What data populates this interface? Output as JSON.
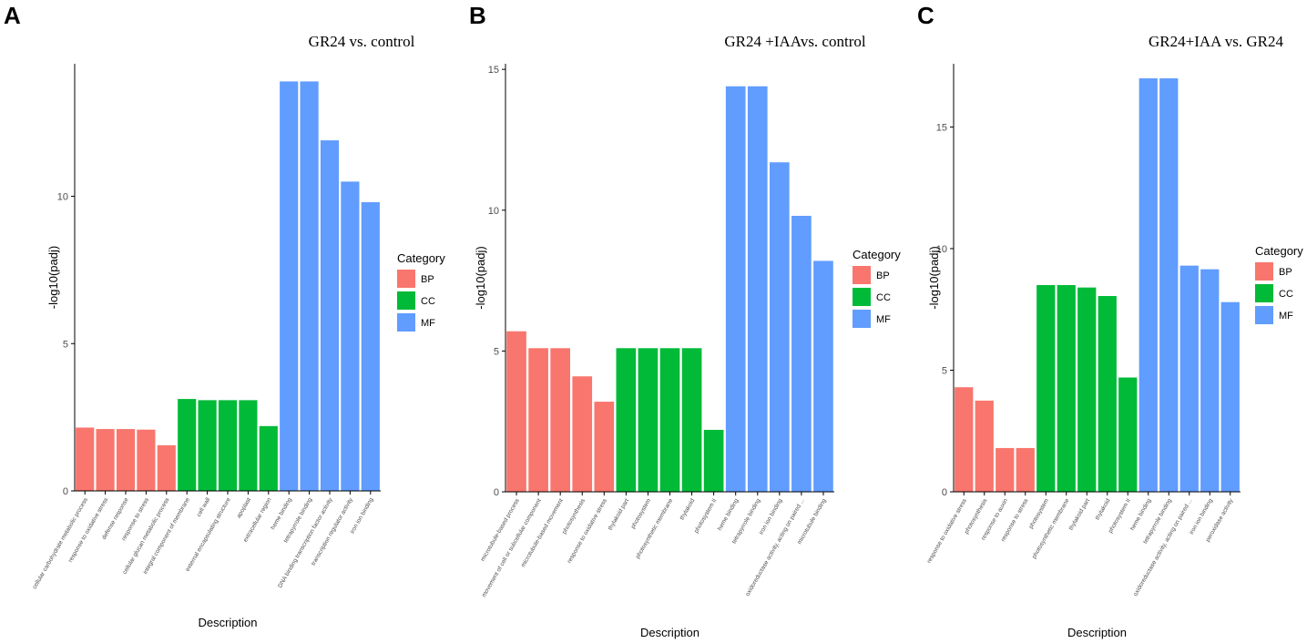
{
  "colors": {
    "BP": "#F8766D",
    "CC": "#00BA38",
    "MF": "#619CFF"
  },
  "chart_data": [
    {
      "type": "bar",
      "panel_label": "A",
      "title": "GR24 vs. control",
      "xlabel": "Description",
      "ylabel": "-log10(padj)",
      "ylim": [
        0,
        14.5
      ],
      "yticks": [
        0,
        5,
        10
      ],
      "legend": {
        "title": "Category",
        "entries": [
          "BP",
          "CC",
          "MF"
        ]
      },
      "categories": [
        "cellular carbohydrate metabolic process",
        "response to oxidative stress",
        "defense response",
        "response to stress",
        "cellular glucan metabolic process",
        "integral component of membrane",
        "cell wall",
        "external encapsulating structure",
        "apoplast",
        "extracellular region",
        "heme binding",
        "tetrapyrrole binding",
        "DNA binding transcription factor activity",
        "transcription regulator activity",
        "iron ion binding"
      ],
      "values": [
        2.15,
        2.1,
        2.1,
        2.08,
        1.55,
        3.12,
        3.08,
        3.08,
        3.08,
        2.2,
        13.9,
        13.9,
        11.9,
        10.5,
        9.8
      ],
      "category_groups": [
        "BP",
        "BP",
        "BP",
        "BP",
        "BP",
        "CC",
        "CC",
        "CC",
        "CC",
        "CC",
        "MF",
        "MF",
        "MF",
        "MF",
        "MF"
      ]
    },
    {
      "type": "bar",
      "panel_label": "B",
      "title": "GR24 +IAAvs. control",
      "xlabel": "Description",
      "ylabel": "-log10(padj)",
      "ylim": [
        0,
        15.2
      ],
      "yticks": [
        0,
        5,
        10,
        15
      ],
      "legend": {
        "title": "Category",
        "entries": [
          "BP",
          "CC",
          "MF"
        ]
      },
      "categories": [
        "microtubule-based process",
        "movement of cell or subcellular component",
        "microtubule-based movement",
        "photosynthesis",
        "response to oxidative stress",
        "thylakoid part",
        "photosystem",
        "photosynthetic membrane",
        "thylakoid",
        "photosystem II",
        "heme binding",
        "tetrapyrrole binding",
        "iron ion binding",
        "oxidoreductase activity, acting on paired ...",
        "microtubule binding"
      ],
      "values": [
        5.7,
        5.1,
        5.1,
        4.1,
        3.2,
        5.1,
        5.1,
        5.1,
        5.1,
        2.2,
        14.4,
        14.4,
        11.7,
        9.8,
        8.2
      ],
      "category_groups": [
        "BP",
        "BP",
        "BP",
        "BP",
        "BP",
        "CC",
        "CC",
        "CC",
        "CC",
        "CC",
        "MF",
        "MF",
        "MF",
        "MF",
        "MF"
      ]
    },
    {
      "type": "bar",
      "panel_label": "C",
      "title": "GR24+IAA vs. GR24",
      "xlabel": "Description",
      "ylabel": "-log10(padj)",
      "ylim": [
        0,
        17.6
      ],
      "yticks": [
        0,
        5,
        10,
        15
      ],
      "legend": {
        "title": "Category",
        "entries": [
          "BP",
          "CC",
          "MF"
        ]
      },
      "categories": [
        "response to oxidative stress",
        "photosynthesis",
        "response to auxin",
        "response to stress",
        "photosystem",
        "photosynthetic membrane",
        "thylakoid part",
        "thylakoid",
        "photosystem II",
        "heme binding",
        "tetrapyrrole binding",
        "oxidoreductase activity, acting on paired ...",
        "iron ion binding",
        "peroxidase activity"
      ],
      "values": [
        4.3,
        3.75,
        1.8,
        1.8,
        8.5,
        8.5,
        8.4,
        8.05,
        4.7,
        17.0,
        17.0,
        9.3,
        9.15,
        7.8
      ],
      "category_groups": [
        "BP",
        "BP",
        "BP",
        "BP",
        "CC",
        "CC",
        "CC",
        "CC",
        "CC",
        "MF",
        "MF",
        "MF",
        "MF",
        "MF"
      ]
    }
  ]
}
